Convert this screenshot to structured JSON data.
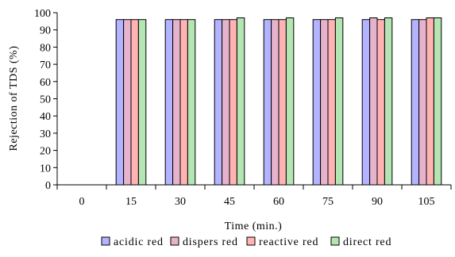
{
  "chart_data": {
    "type": "bar",
    "xlabel": "Time (min.)",
    "ylabel": "Rejection of TDS (%)",
    "ylim": [
      0,
      100
    ],
    "yticks": [
      0,
      10,
      20,
      30,
      40,
      50,
      60,
      70,
      80,
      90,
      100
    ],
    "categories": [
      "0",
      "15",
      "30",
      "45",
      "60",
      "75",
      "90",
      "105"
    ],
    "grid": false,
    "legend_position": "bottom",
    "series": [
      {
        "name": "acidic red",
        "color": "#b3b3ff",
        "values": [
          0,
          96,
          96,
          96,
          96,
          96,
          96,
          96
        ]
      },
      {
        "name": "dispers red",
        "color": "#e6b3cc",
        "values": [
          0,
          96,
          96,
          96,
          96,
          96,
          97,
          96
        ]
      },
      {
        "name": "reactive red",
        "color": "#ffb3b3",
        "values": [
          0,
          96,
          96,
          96,
          96,
          96,
          96,
          97
        ]
      },
      {
        "name": "direct red",
        "color": "#b3e6b3",
        "values": [
          0,
          96,
          96,
          97,
          97,
          97,
          97,
          97
        ]
      }
    ]
  }
}
